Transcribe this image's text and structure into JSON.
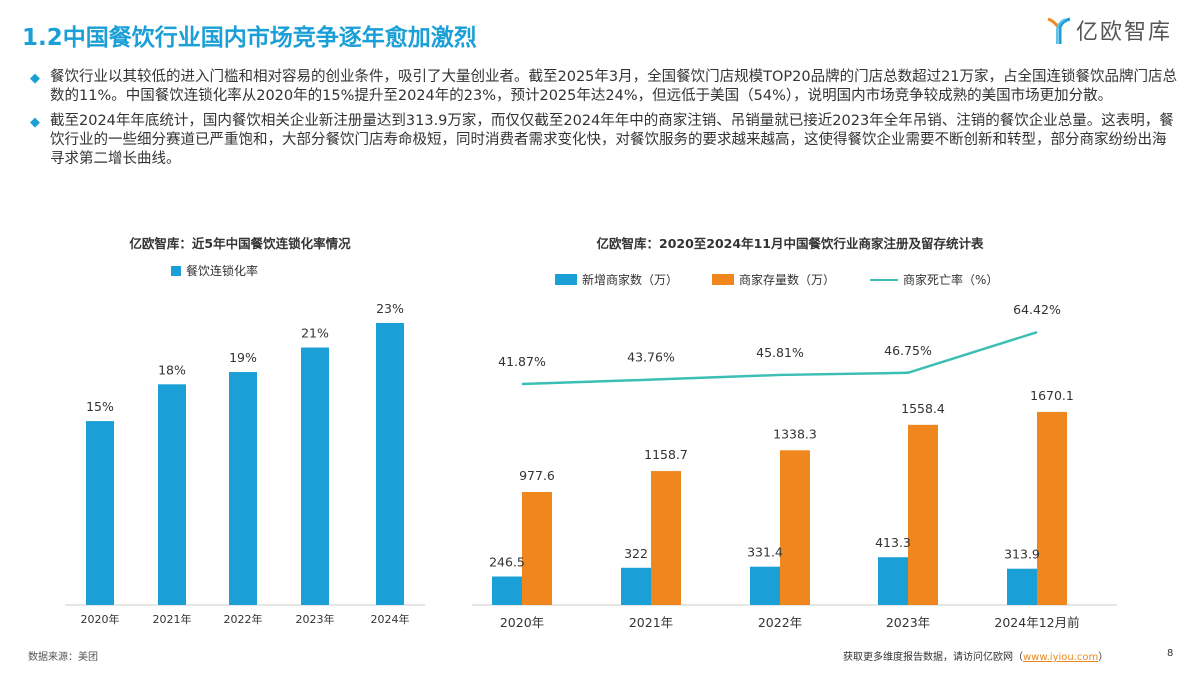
{
  "header": {
    "title": "1.2中国餐饮行业国内市场竞争逐年愈加激烈",
    "logo_text": "亿欧智库"
  },
  "bullets": [
    "餐饮行业以其较低的进入门槛和相对容易的创业条件，吸引了大量创业者。截至2025年3月，全国餐饮门店规模TOP20品牌的门店总数超过21万家，占全国连锁餐饮品牌门店总数的11%。中国餐饮连锁化率从2020年的15%提升至2024年的23%，预计2025年达24%，但远低于美国（54%），说明国内市场竞争较成熟的美国市场更加分散。",
    "截至2024年年底统计，国内餐饮相关企业新注册量达到313.9万家，而仅仅截至2024年年中的商家注销、吊销量就已接近2023年全年吊销、注销的餐饮企业总量。这表明，餐饮行业的一些细分赛道已严重饱和，大部分餐饮门店寿命极短，同时消费者需求变化快，对餐饮服务的要求越来越高，这使得餐饮企业需要不断创新和转型，部分商家纷纷出海寻求第二增长曲线。"
  ],
  "footer": {
    "source": "数据来源：美团",
    "more_text": "获取更多维度报告数据，请访问亿欧网（",
    "link": "www.iyiou.com",
    "more_end": "）",
    "page": "8"
  },
  "chart_data": [
    {
      "type": "bar",
      "title": "亿欧智库：近5年中国餐饮连锁化率情况",
      "categories": [
        "2020年",
        "2021年",
        "2022年",
        "2023年",
        "2024年"
      ],
      "series": [
        {
          "name": "餐饮连锁化率",
          "values": [
            15,
            18,
            19,
            21,
            23
          ],
          "labels": [
            "15%",
            "18%",
            "19%",
            "21%",
            "23%"
          ],
          "color": "#1a9fd6"
        }
      ],
      "unit": "%"
    },
    {
      "type": "bar+line",
      "title": "亿欧智库：2020至2024年11月中国餐饮行业商家注册及留存统计表",
      "categories": [
        "2020年",
        "2021年",
        "2022年",
        "2023年",
        "2024年12月前"
      ],
      "series": [
        {
          "name": "新增商家数（万）",
          "type": "bar",
          "values": [
            246.5,
            322,
            331.4,
            413.3,
            313.9
          ],
          "color": "#1a9fd6"
        },
        {
          "name": "商家存量数（万）",
          "type": "bar",
          "values": [
            977.6,
            1158.7,
            1338.3,
            1558.4,
            1670.1
          ],
          "color": "#f0871e"
        },
        {
          "name": "商家死亡率（%）",
          "type": "line",
          "values": [
            41.87,
            43.76,
            45.81,
            46.75,
            64.42
          ],
          "labels": [
            "41.87%",
            "43.76%",
            "45.81%",
            "46.75%",
            "64.42%"
          ],
          "color": "#3bbfb4"
        }
      ]
    }
  ]
}
